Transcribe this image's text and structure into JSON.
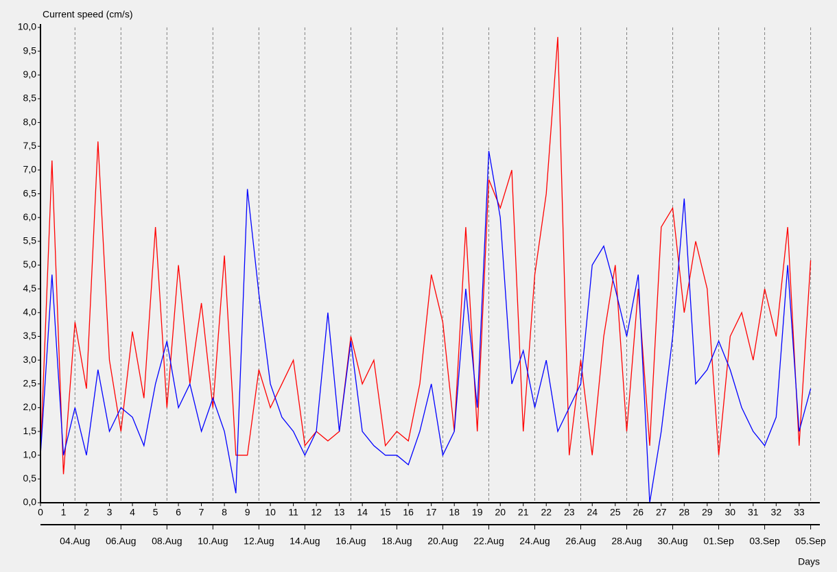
{
  "chart_data": {
    "type": "line",
    "title": "Current speed (cm/s)",
    "x_label": "Days",
    "x": [
      0,
      0.5,
      1,
      1.5,
      2,
      2.5,
      3,
      3.5,
      4,
      4.5,
      5,
      5.5,
      6,
      6.5,
      7,
      7.5,
      8,
      8.5,
      9,
      9.5,
      10,
      10.5,
      11,
      11.5,
      12,
      12.5,
      13,
      13.5,
      14,
      14.5,
      15,
      15.5,
      16,
      16.5,
      17,
      17.5,
      18,
      18.5,
      19,
      19.5,
      20,
      20.5,
      21,
      21.5,
      22,
      22.5,
      23,
      23.5,
      24,
      24.5,
      25,
      25.5,
      26,
      26.5,
      27,
      27.5,
      28,
      28.5,
      29,
      29.5,
      30,
      30.5,
      31,
      31.5,
      32,
      32.5,
      33,
      33.5
    ],
    "series": [
      {
        "color": "#ff0000",
        "values": [
          1.0,
          7.2,
          0.6,
          3.8,
          2.4,
          7.6,
          3.0,
          1.5,
          3.6,
          2.2,
          5.8,
          2.0,
          5.0,
          2.5,
          4.2,
          2.0,
          5.2,
          1.0,
          1.0,
          2.8,
          2.0,
          2.5,
          3.0,
          1.2,
          1.5,
          1.3,
          1.5,
          3.5,
          2.5,
          3.0,
          1.2,
          1.5,
          1.3,
          2.5,
          4.8,
          3.8,
          1.5,
          5.8,
          1.5,
          6.8,
          6.2,
          7.0,
          1.5,
          4.8,
          6.5,
          9.8,
          1.0,
          3.0,
          1.0,
          3.5,
          5.0,
          1.5,
          4.5,
          1.2,
          5.8,
          6.2,
          4.0,
          5.5,
          4.5,
          1.0,
          3.5,
          4.0,
          3.0,
          4.5,
          3.5,
          5.8,
          1.2,
          5.1
        ]
      },
      {
        "color": "#0000ff",
        "values": [
          1.0,
          4.8,
          1.0,
          2.0,
          1.0,
          2.8,
          1.5,
          2.0,
          1.8,
          1.2,
          2.5,
          3.4,
          2.0,
          2.5,
          1.5,
          2.2,
          1.5,
          0.2,
          6.6,
          4.4,
          2.5,
          1.8,
          1.5,
          1.0,
          1.5,
          4.0,
          1.5,
          3.4,
          1.5,
          1.2,
          1.0,
          1.0,
          0.8,
          1.5,
          2.5,
          1.0,
          1.5,
          4.5,
          2.0,
          7.4,
          6.0,
          2.5,
          3.2,
          2.0,
          3.0,
          1.5,
          2.0,
          2.5,
          5.0,
          5.4,
          4.5,
          3.5,
          4.8,
          0.0,
          1.5,
          3.5,
          6.4,
          2.5,
          2.8,
          3.4,
          2.8,
          2.0,
          1.5,
          1.2,
          1.8,
          5.0,
          1.5,
          2.4
        ]
      }
    ],
    "xlim": [
      0,
      33.9
    ],
    "xticks": [
      0,
      1,
      2,
      3,
      4,
      5,
      6,
      7,
      8,
      9,
      10,
      11,
      12,
      13,
      14,
      15,
      16,
      17,
      18,
      19,
      20,
      21,
      22,
      23,
      24,
      25,
      26,
      27,
      28,
      29,
      30,
      31,
      32,
      33
    ],
    "x2ticks": [
      {
        "value": 1.5,
        "label": "04.Aug"
      },
      {
        "value": 3.5,
        "label": "06.Aug"
      },
      {
        "value": 5.5,
        "label": "08.Aug"
      },
      {
        "value": 7.5,
        "label": "10.Aug"
      },
      {
        "value": 9.5,
        "label": "12.Aug"
      },
      {
        "value": 11.5,
        "label": "14.Aug"
      },
      {
        "value": 13.5,
        "label": "16.Aug"
      },
      {
        "value": 15.5,
        "label": "18.Aug"
      },
      {
        "value": 17.5,
        "label": "20.Aug"
      },
      {
        "value": 19.5,
        "label": "22.Aug"
      },
      {
        "value": 21.5,
        "label": "24.Aug"
      },
      {
        "value": 23.5,
        "label": "26.Aug"
      },
      {
        "value": 25.5,
        "label": "28.Aug"
      },
      {
        "value": 27.5,
        "label": "30.Aug"
      },
      {
        "value": 29.5,
        "label": "01.Sep"
      },
      {
        "value": 31.5,
        "label": "03.Sep"
      },
      {
        "value": 33.5,
        "label": "05.Sep"
      }
    ],
    "ylim": [
      0,
      10
    ],
    "yticks": [
      {
        "value": 0,
        "label": "0,0"
      },
      {
        "value": 0.5,
        "label": "0,5"
      },
      {
        "value": 1,
        "label": "1,0"
      },
      {
        "value": 1.5,
        "label": "1,5"
      },
      {
        "value": 2,
        "label": "2,0"
      },
      {
        "value": 2.5,
        "label": "2,5"
      },
      {
        "value": 3,
        "label": "3,0"
      },
      {
        "value": 3.5,
        "label": "3,5"
      },
      {
        "value": 4,
        "label": "4,0"
      },
      {
        "value": 4.5,
        "label": "4,5"
      },
      {
        "value": 5,
        "label": "5,0"
      },
      {
        "value": 5.5,
        "label": "5,5"
      },
      {
        "value": 6,
        "label": "6,0"
      },
      {
        "value": 6.5,
        "label": "6,5"
      },
      {
        "value": 7,
        "label": "7,0"
      },
      {
        "value": 7.5,
        "label": "7,5"
      },
      {
        "value": 8,
        "label": "8,0"
      },
      {
        "value": 8.5,
        "label": "8,5"
      },
      {
        "value": 9,
        "label": "9,0"
      },
      {
        "value": 9.5,
        "label": "9,5"
      },
      {
        "value": 10,
        "label": "10,0"
      }
    ],
    "grid": "x2"
  }
}
